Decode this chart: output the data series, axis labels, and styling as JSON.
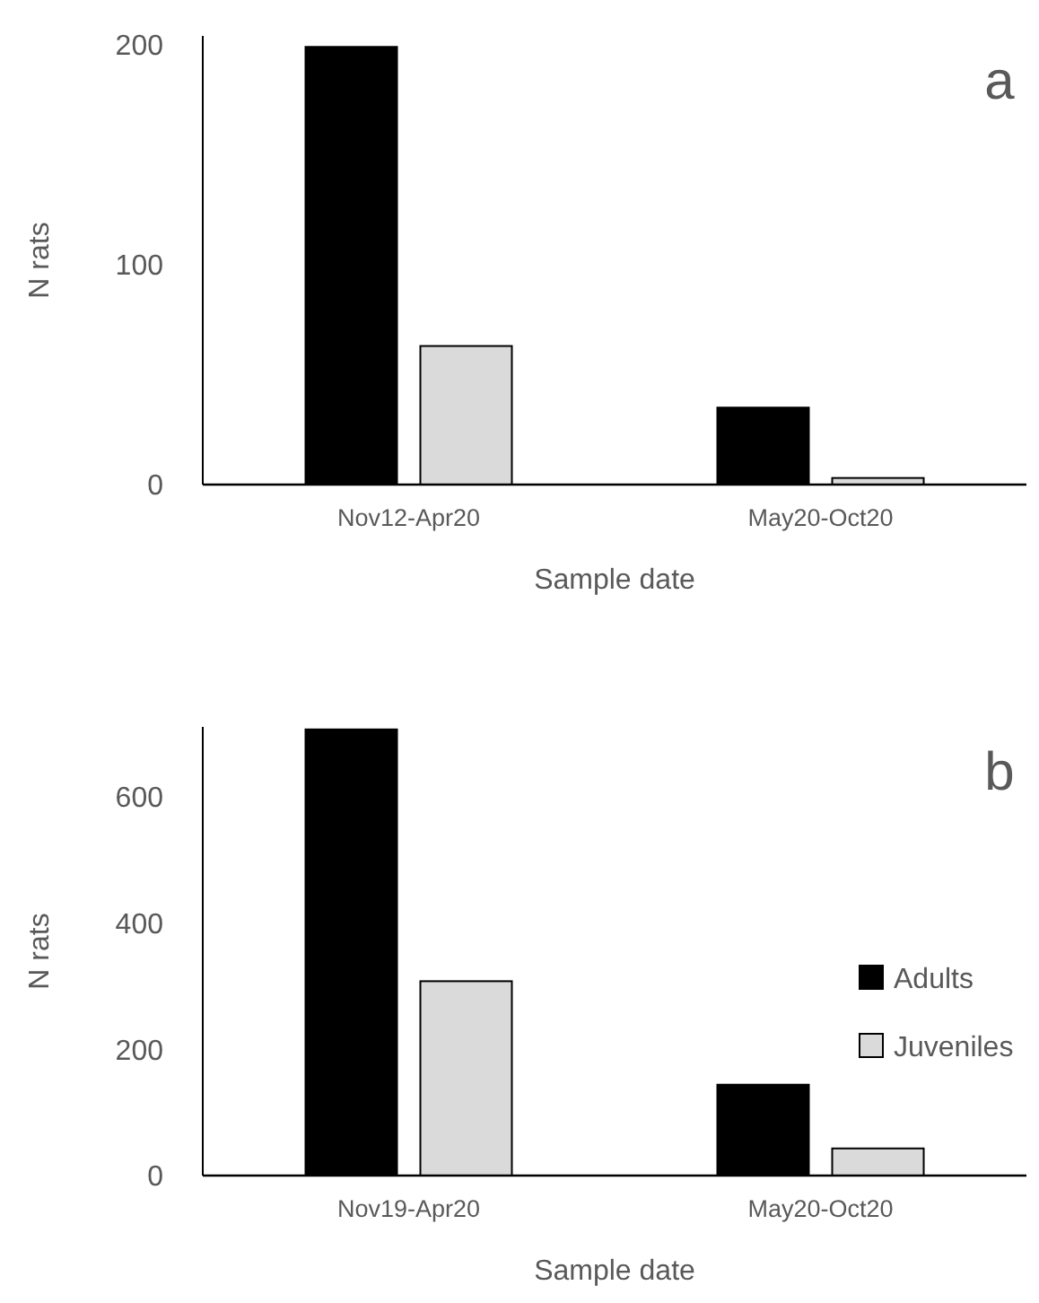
{
  "chart_data": [
    {
      "type": "bar",
      "categories": [
        "Nov12-Apr20",
        "May20-Oct20"
      ],
      "xlabel": "Sample date",
      "ylabel": "N rats",
      "ylim": [
        0,
        204
      ],
      "yticks": [
        0,
        100,
        200
      ],
      "grid": false,
      "legend": false,
      "annotations": [
        "a"
      ],
      "series": [
        {
          "color": "#000000",
          "values": [
            199,
            35
          ]
        },
        {
          "color": "#d9dad9",
          "values": [
            63,
            3
          ]
        }
      ]
    },
    {
      "type": "bar",
      "categories": [
        "Nov19-Apr20",
        "May20-Oct20"
      ],
      "xlabel": "Sample date",
      "ylabel": "N rats",
      "ylim": [
        0,
        711
      ],
      "yticks": [
        0,
        200,
        400,
        600
      ],
      "grid": false,
      "legend": "right",
      "annotations": [
        "b"
      ],
      "series": [
        {
          "name": "Adults",
          "color": "#000000",
          "values": [
            707,
            144
          ]
        },
        {
          "name": "Juveniles",
          "color": "#d9dad9",
          "values": [
            308,
            43
          ]
        }
      ]
    }
  ]
}
